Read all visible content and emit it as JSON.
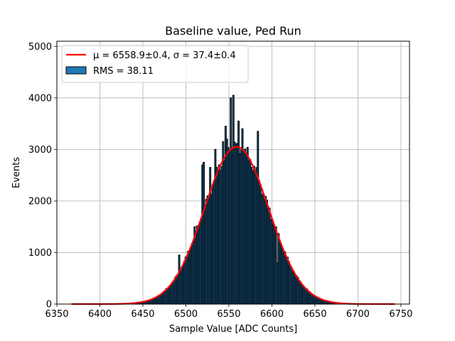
{
  "chart_data": {
    "type": "bar",
    "title": "Baseline value, Ped Run",
    "xlabel": "Sample Value [ADC Counts]",
    "ylabel": "Events",
    "xlim": [
      6350,
      6760
    ],
    "ylim": [
      0,
      5100
    ],
    "xticks": [
      6350,
      6400,
      6450,
      6500,
      6550,
      6600,
      6650,
      6700,
      6750
    ],
    "yticks": [
      0,
      1000,
      2000,
      3000,
      4000,
      5000
    ],
    "grid": true,
    "legend_position": "top-left",
    "bin_start": 6367,
    "bin_width": 1.5,
    "bin_count": 251,
    "fit": {
      "label_mu": "μ = 6558.9±0.4",
      "label_sigma": "σ = 37.4±0.4",
      "mu": 6558.9,
      "sigma": 37.4,
      "amplitude": 3050,
      "x_range": [
        6367,
        6743
      ],
      "color": "#ff0000"
    },
    "histogram": {
      "label": "RMS = 38.11",
      "color": "#1f77b4",
      "edge_color": "#000000",
      "spikes": [
        {
          "x": 6492,
          "value": 950
        },
        {
          "x": 6510,
          "value": 1500
        },
        {
          "x": 6519,
          "value": 2700
        },
        {
          "x": 6521,
          "value": 2750
        },
        {
          "x": 6528,
          "value": 2650
        },
        {
          "x": 6534,
          "value": 3000
        },
        {
          "x": 6538,
          "value": 3600
        },
        {
          "x": 6543,
          "value": 3150
        },
        {
          "x": 6546,
          "value": 3450
        },
        {
          "x": 6548,
          "value": 3200
        },
        {
          "x": 6550,
          "value": 3900
        },
        {
          "x": 6552,
          "value": 4000
        },
        {
          "x": 6555,
          "value": 4050
        },
        {
          "x": 6556,
          "value": 3100
        },
        {
          "x": 6561,
          "value": 3550
        },
        {
          "x": 6566,
          "value": 3400
        },
        {
          "x": 6571,
          "value": 3100
        },
        {
          "x": 6584,
          "value": 3350
        },
        {
          "x": 6590,
          "value": 2150
        },
        {
          "x": 6598,
          "value": 1200
        },
        {
          "x": 6606,
          "value": 800
        },
        {
          "x": 6628,
          "value": 500
        }
      ]
    }
  }
}
